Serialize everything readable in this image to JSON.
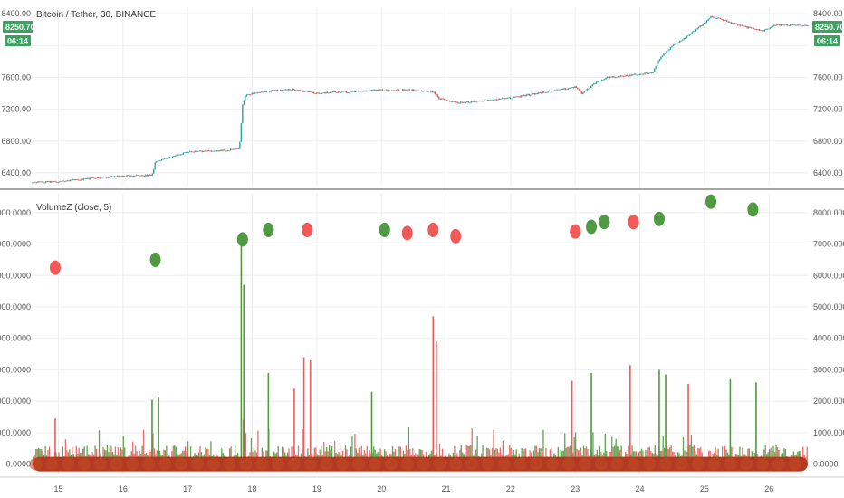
{
  "colors": {
    "up": "#26a69a",
    "down": "#ef5350",
    "vol_up": "#4e9a3c",
    "vol_down": "#f05b5b",
    "dot_green": "#4f9a43",
    "dot_red": "#f25a5a",
    "baseline": "#b33a20",
    "grid": "#eeeeee",
    "badge": "#3aa35f",
    "separator": "#888888"
  },
  "price_pane": {
    "title": "Bitcoin / Tether, 30, BINANCE",
    "last_price_badge": "8250.70",
    "countdown_badge": "06:14",
    "left_badge_price": "8250.70",
    "left_badge_time": "06:14",
    "ticks": [
      "8400.00",
      "8000.00",
      "7600.00",
      "7200.00",
      "6800.00",
      "6400.00"
    ]
  },
  "volume_pane": {
    "title": "VolumeZ (close, 5)",
    "ticks": [
      "8000.0000",
      "7000.0000",
      "6000.0000",
      "5000.0000",
      "4000.0000",
      "3000.0000",
      "2000.0000",
      "1000.0000",
      "0.0000"
    ]
  },
  "x_axis": {
    "ticks": [
      "15",
      "16",
      "17",
      "18",
      "19",
      "20",
      "21",
      "22",
      "23",
      "24",
      "25",
      "26"
    ]
  },
  "chart_data": [
    {
      "type": "line",
      "title": "Bitcoin / Tether, 30, BINANCE",
      "x_unit": "day of month",
      "y_axis_ticks": [
        8400,
        8000,
        7600,
        7200,
        6800,
        6400
      ],
      "xlim": [
        14.6,
        26.6
      ],
      "ylim": [
        6240,
        8480
      ],
      "series": [
        {
          "name": "close",
          "x": [
            14.6,
            15.0,
            15.5,
            16.0,
            16.45,
            16.5,
            16.6,
            17.0,
            17.5,
            17.8,
            17.85,
            17.9,
            18.3,
            18.6,
            19.0,
            19.5,
            20.0,
            20.5,
            20.8,
            20.9,
            21.2,
            21.5,
            22.0,
            22.5,
            23.0,
            23.1,
            23.3,
            23.5,
            23.9,
            24.2,
            24.3,
            24.5,
            24.7,
            25.0,
            25.1,
            25.3,
            25.5,
            25.9,
            26.1,
            26.5
          ],
          "y": [
            6280,
            6290,
            6330,
            6360,
            6370,
            6540,
            6570,
            6660,
            6680,
            6700,
            7260,
            7380,
            7430,
            7450,
            7400,
            7420,
            7440,
            7440,
            7420,
            7330,
            7280,
            7300,
            7340,
            7410,
            7480,
            7400,
            7520,
            7600,
            7630,
            7660,
            7830,
            8000,
            8100,
            8280,
            8360,
            8320,
            8260,
            8180,
            8260,
            8250
          ]
        }
      ]
    },
    {
      "type": "bar",
      "title": "VolumeZ (close, 5)",
      "x_unit": "day of month",
      "xlim": [
        14.6,
        26.6
      ],
      "ylim": [
        -300,
        8600
      ],
      "y_axis_ticks": [
        8000,
        7000,
        6000,
        5000,
        4000,
        3000,
        2000,
        1000,
        0
      ],
      "spikes": [
        {
          "x": 14.95,
          "y": 1450,
          "dir": "down"
        },
        {
          "x": 16.45,
          "y": 2050,
          "dir": "up"
        },
        {
          "x": 16.55,
          "y": 2150,
          "dir": "up"
        },
        {
          "x": 17.83,
          "y": 7200,
          "dir": "up"
        },
        {
          "x": 17.87,
          "y": 5700,
          "dir": "up"
        },
        {
          "x": 18.25,
          "y": 2900,
          "dir": "up"
        },
        {
          "x": 18.65,
          "y": 2400,
          "dir": "down"
        },
        {
          "x": 18.8,
          "y": 3400,
          "dir": "down"
        },
        {
          "x": 18.9,
          "y": 3300,
          "dir": "down"
        },
        {
          "x": 19.85,
          "y": 2300,
          "dir": "up"
        },
        {
          "x": 20.8,
          "y": 4700,
          "dir": "down"
        },
        {
          "x": 20.85,
          "y": 3900,
          "dir": "down"
        },
        {
          "x": 22.95,
          "y": 2650,
          "dir": "down"
        },
        {
          "x": 23.25,
          "y": 2900,
          "dir": "up"
        },
        {
          "x": 23.85,
          "y": 3150,
          "dir": "down"
        },
        {
          "x": 24.3,
          "y": 3000,
          "dir": "up"
        },
        {
          "x": 24.4,
          "y": 2850,
          "dir": "up"
        },
        {
          "x": 24.75,
          "y": 2550,
          "dir": "down"
        },
        {
          "x": 25.4,
          "y": 2700,
          "dir": "up"
        },
        {
          "x": 25.8,
          "y": 2600,
          "dir": "up"
        }
      ],
      "markers": [
        {
          "x": 14.95,
          "y": 6250,
          "dir": "down"
        },
        {
          "x": 16.5,
          "y": 6500,
          "dir": "up"
        },
        {
          "x": 17.85,
          "y": 7150,
          "dir": "up"
        },
        {
          "x": 18.25,
          "y": 7450,
          "dir": "up"
        },
        {
          "x": 18.85,
          "y": 7450,
          "dir": "down"
        },
        {
          "x": 20.05,
          "y": 7450,
          "dir": "up"
        },
        {
          "x": 20.4,
          "y": 7350,
          "dir": "down"
        },
        {
          "x": 20.8,
          "y": 7450,
          "dir": "down"
        },
        {
          "x": 21.15,
          "y": 7250,
          "dir": "down"
        },
        {
          "x": 23.0,
          "y": 7400,
          "dir": "down"
        },
        {
          "x": 23.25,
          "y": 7550,
          "dir": "up"
        },
        {
          "x": 23.45,
          "y": 7700,
          "dir": "up"
        },
        {
          "x": 23.9,
          "y": 7700,
          "dir": "down"
        },
        {
          "x": 24.3,
          "y": 7800,
          "dir": "up"
        },
        {
          "x": 25.1,
          "y": 8350,
          "dir": "up"
        },
        {
          "x": 25.75,
          "y": 8100,
          "dir": "up"
        }
      ]
    }
  ]
}
